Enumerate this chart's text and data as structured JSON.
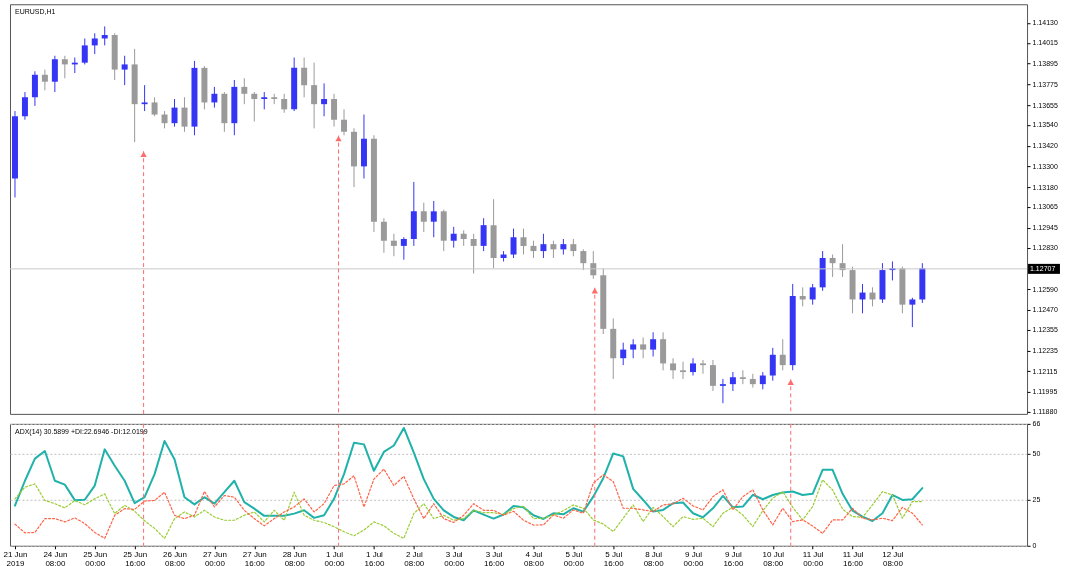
{
  "chart_data": [
    {
      "type": "candlestick",
      "title": "EURUSD,H1",
      "categories": [
        null,
        null,
        null,
        null,
        null,
        null,
        null,
        null,
        null,
        null,
        null,
        null,
        null,
        null,
        null,
        null,
        null,
        null,
        null,
        null,
        null,
        null,
        null,
        null,
        null,
        null,
        null,
        null,
        null,
        null,
        null,
        null,
        null,
        null,
        null,
        null,
        null,
        null,
        null,
        null,
        null,
        null,
        null,
        null,
        null,
        null,
        null,
        null,
        null,
        null,
        null,
        null,
        null,
        null,
        null,
        null,
        null,
        null,
        null,
        null,
        null,
        null,
        null,
        null,
        null,
        null,
        null,
        null,
        null,
        null,
        null,
        null,
        null,
        null,
        null,
        null,
        null,
        null,
        null,
        null,
        null,
        null,
        null,
        null,
        null,
        null,
        null,
        null,
        null,
        null,
        null,
        null,
        null,
        null,
        null,
        null,
        null,
        null,
        null,
        null,
        null,
        null
      ],
      "ohlc": [
        [
          1.1323,
          1.1362,
          1.1312,
          1.1359
        ],
        [
          1.1359,
          1.1373,
          1.1357,
          1.137
        ],
        [
          1.137,
          1.1385,
          1.1365,
          1.1383
        ],
        [
          1.1383,
          1.1386,
          1.1374,
          1.1379
        ],
        [
          1.1379,
          1.1394,
          1.1373,
          1.1392
        ],
        [
          1.1392,
          1.1394,
          1.1381,
          1.1389
        ],
        [
          1.1389,
          1.1393,
          1.1384,
          1.139
        ],
        [
          1.139,
          1.1404,
          1.1389,
          1.14
        ],
        [
          1.14,
          1.1407,
          1.1395,
          1.1404
        ],
        [
          1.1404,
          1.1411,
          1.14,
          1.1406
        ],
        [
          1.1406,
          1.1407,
          1.138,
          1.1386
        ],
        [
          1.1386,
          1.1394,
          1.1377,
          1.1389
        ],
        [
          1.1389,
          1.1398,
          1.1344,
          1.1366
        ],
        [
          1.1366,
          1.1377,
          1.1362,
          1.1367
        ],
        [
          1.1367,
          1.137,
          1.1359,
          1.136
        ],
        [
          1.136,
          1.1362,
          1.1352,
          1.1355
        ],
        [
          1.1355,
          1.1369,
          1.1353,
          1.1364
        ],
        [
          1.1364,
          1.137,
          1.135,
          1.1353
        ],
        [
          1.1353,
          1.1391,
          1.1348,
          1.1387
        ],
        [
          1.1387,
          1.1388,
          1.1363,
          1.1367
        ],
        [
          1.1367,
          1.1376,
          1.1364,
          1.1372
        ],
        [
          1.1372,
          1.1373,
          1.135,
          1.1355
        ],
        [
          1.1355,
          1.138,
          1.1348,
          1.1376
        ],
        [
          1.1376,
          1.1381,
          1.1366,
          1.1372
        ],
        [
          1.1372,
          1.1373,
          1.1356,
          1.1369
        ],
        [
          1.1369,
          1.1373,
          1.1363,
          1.137
        ],
        [
          1.137,
          1.1372,
          1.1366,
          1.1369
        ],
        [
          1.1369,
          1.1372,
          1.1361,
          1.1363
        ],
        [
          1.1363,
          1.1393,
          1.1362,
          1.1387
        ],
        [
          1.1387,
          1.1393,
          1.137,
          1.1377
        ],
        [
          1.1377,
          1.139,
          1.1352,
          1.1366
        ],
        [
          1.1366,
          1.1378,
          1.1359,
          1.1369
        ],
        [
          1.1369,
          1.1372,
          1.1353,
          1.1357
        ],
        [
          1.1357,
          1.1363,
          1.1348,
          1.135
        ],
        [
          1.135,
          1.1352,
          1.1318,
          1.133
        ],
        [
          1.133,
          1.136,
          1.1323,
          1.1346
        ],
        [
          1.1346,
          1.1348,
          1.1292,
          1.1298
        ],
        [
          1.1298,
          1.13,
          1.128,
          1.1287
        ],
        [
          1.1287,
          1.1291,
          1.1278,
          1.1284
        ],
        [
          1.1284,
          1.1289,
          1.1276,
          1.1288
        ],
        [
          1.1288,
          1.1321,
          1.1284,
          1.1304
        ],
        [
          1.1304,
          1.1309,
          1.1292,
          1.1298
        ],
        [
          1.1298,
          1.131,
          1.1289,
          1.1304
        ],
        [
          1.1304,
          1.1305,
          1.1281,
          1.1287
        ],
        [
          1.1287,
          1.1295,
          1.1283,
          1.1291
        ],
        [
          1.1291,
          1.1293,
          1.1284,
          1.1288
        ],
        [
          1.1288,
          1.1291,
          1.1268,
          1.1284
        ],
        [
          1.1284,
          1.13,
          1.1281,
          1.1296
        ],
        [
          1.1296,
          1.1311,
          1.1271,
          1.1277
        ],
        [
          1.1277,
          1.1281,
          1.1275,
          1.1279
        ],
        [
          1.1279,
          1.1294,
          1.1277,
          1.1289
        ],
        [
          1.1289,
          1.1294,
          1.1279,
          1.1284
        ],
        [
          1.1284,
          1.1287,
          1.1277,
          1.1281
        ],
        [
          1.1281,
          1.1291,
          1.1277,
          1.1285
        ],
        [
          1.1285,
          1.1287,
          1.1277,
          1.1282
        ],
        [
          1.1282,
          1.1288,
          1.1279,
          1.1285
        ],
        [
          1.1285,
          1.1288,
          1.1278,
          1.1281
        ],
        [
          1.1281,
          1.1282,
          1.127,
          1.1274
        ],
        [
          1.1274,
          1.1281,
          1.1265,
          1.1267
        ],
        [
          1.1267,
          1.1271,
          1.1233,
          1.1236
        ],
        [
          1.1236,
          1.1242,
          1.1207,
          1.1219
        ],
        [
          1.1219,
          1.1228,
          1.1215,
          1.1224
        ],
        [
          1.1224,
          1.123,
          1.1219,
          1.1227
        ],
        [
          1.1227,
          1.1231,
          1.1219,
          1.1224
        ],
        [
          1.1224,
          1.1234,
          1.122,
          1.123
        ],
        [
          1.123,
          1.1234,
          1.1212,
          1.1216
        ],
        [
          1.1216,
          1.1219,
          1.1207,
          1.1212
        ],
        [
          1.1212,
          1.1217,
          1.1207,
          1.1211
        ],
        [
          1.1211,
          1.1219,
          1.1209,
          1.1216
        ],
        [
          1.1216,
          1.1218,
          1.121,
          1.1215
        ],
        [
          1.1215,
          1.1218,
          1.12,
          1.1203
        ],
        [
          1.1203,
          1.1207,
          1.1193,
          1.1204
        ],
        [
          1.1204,
          1.1211,
          1.12,
          1.1208
        ],
        [
          1.1208,
          1.1212,
          1.1204,
          1.1207
        ],
        [
          1.1207,
          1.121,
          1.1202,
          1.1204
        ],
        [
          1.1204,
          1.1211,
          1.1201,
          1.1209
        ],
        [
          1.1209,
          1.1225,
          1.1206,
          1.1221
        ],
        [
          1.1221,
          1.123,
          1.1212,
          1.1215
        ],
        [
          1.1215,
          1.1262,
          1.1212,
          1.1255
        ],
        [
          1.1255,
          1.126,
          1.1249,
          1.1253
        ],
        [
          1.1253,
          1.1262,
          1.125,
          1.126
        ],
        [
          1.126,
          1.1281,
          1.1258,
          1.1277
        ],
        [
          1.1277,
          1.1279,
          1.1266,
          1.1274
        ],
        [
          1.1274,
          1.1285,
          1.1266,
          1.127
        ],
        [
          1.127,
          1.1272,
          1.1245,
          1.1253
        ],
        [
          1.1253,
          1.1262,
          1.1245,
          1.1257
        ],
        [
          1.1257,
          1.126,
          1.1249,
          1.1253
        ],
        [
          1.1253,
          1.1274,
          1.1251,
          1.127
        ],
        [
          1.127,
          1.1275,
          1.1264,
          1.1271
        ],
        [
          1.1271,
          1.1272,
          1.1245,
          1.125
        ],
        [
          1.125,
          1.1254,
          1.1237,
          1.1253
        ],
        [
          1.1253,
          1.1274,
          1.1251,
          1.1271
        ],
        null,
        null,
        null,
        null,
        null,
        null,
        null,
        null,
        null,
        null
      ],
      "colors": [
        "#3535f5",
        "#3535f5",
        "#3535f5",
        "#9a9a9a",
        "#3535f5",
        "#9a9a9a",
        "#3535f5",
        "#3535f5",
        "#3535f5",
        "#3535f5",
        "#9a9a9a",
        "#3535f5",
        "#9a9a9a",
        "#3535f5",
        "#9a9a9a",
        "#9a9a9a",
        "#3535f5",
        "#9a9a9a",
        "#3535f5",
        "#9a9a9a",
        "#3535f5",
        "#9a9a9a",
        "#3535f5",
        "#9a9a9a",
        "#9a9a9a",
        "#3535f5",
        "#9a9a9a",
        "#9a9a9a",
        "#3535f5",
        "#9a9a9a",
        "#9a9a9a",
        "#3535f5",
        "#9a9a9a",
        "#9a9a9a",
        "#9a9a9a",
        "#3535f5",
        "#9a9a9a",
        "#9a9a9a",
        "#9a9a9a",
        "#3535f5",
        "#3535f5",
        "#9a9a9a",
        "#3535f5",
        "#9a9a9a",
        "#3535f5",
        "#9a9a9a",
        "#9a9a9a",
        "#3535f5",
        "#9a9a9a",
        "#3535f5",
        "#3535f5",
        "#9a9a9a",
        "#9a9a9a",
        "#3535f5",
        "#9a9a9a",
        "#3535f5",
        "#9a9a9a",
        "#9a9a9a",
        "#9a9a9a",
        "#9a9a9a",
        "#9a9a9a",
        "#3535f5",
        "#3535f5",
        "#9a9a9a",
        "#3535f5",
        "#9a9a9a",
        "#9a9a9a",
        "#9a9a9a",
        "#3535f5",
        "#9a9a9a",
        "#9a9a9a",
        "#3535f5",
        "#3535f5",
        "#9a9a9a",
        "#9a9a9a",
        "#3535f5",
        "#3535f5",
        "#9a9a9a",
        "#3535f5",
        "#9a9a9a",
        "#3535f5",
        "#3535f5",
        "#9a9a9a",
        "#9a9a9a",
        "#9a9a9a",
        "#3535f5",
        "#9a9a9a",
        "#3535f5",
        "#3535f5",
        "#9a9a9a",
        "#3535f5",
        "#3535f5",
        null,
        null,
        null,
        null,
        null,
        null,
        null,
        null,
        null,
        null
      ],
      "ylim": [
        1.11868,
        1.14238
      ],
      "yticks": [
        {
          "value": 1.1413,
          "label": "1.14130"
        },
        1.14015,
        1.13895,
        1.13775,
        1.13655,
        {
          "value": 1.1354,
          "label": "1.13540"
        },
        {
          "value": 1.1342,
          "label": "1.13420"
        },
        {
          "value": 1.133,
          "label": "1.13300"
        },
        {
          "value": 1.1318,
          "label": "1.13180"
        },
        1.13065,
        1.12945,
        {
          "value": 1.1283,
          "label": "1.12830"
        },
        {
          "value": 1.1259,
          "label": "1.12590"
        },
        {
          "value": 1.1247,
          "label": "1.12470"
        },
        1.12355,
        1.12235,
        1.12115,
        1.11995,
        {
          "value": 1.1188,
          "label": "1.11880"
        }
      ],
      "ref_lines": [
        {
          "axis": "y",
          "value": 1.12707,
          "label": "1.12707",
          "color": "#c8c8c8"
        }
      ],
      "tick_labels": "y"
    },
    {
      "type": "line",
      "title": "ADX(14) 30.5899 +DI:22.6946 -DI:12.0199",
      "categories": [
        "21 Jun 2019",
        null,
        null,
        null,
        "24 Jun 08:00",
        null,
        null,
        null,
        "25 Jun 00:00",
        null,
        null,
        null,
        "25 Jun 16:00",
        null,
        null,
        null,
        "26 Jun 08:00",
        null,
        null,
        null,
        "27 Jun 00:00",
        null,
        null,
        null,
        "27 Jun 16:00",
        null,
        null,
        null,
        "28 Jun 08:00",
        null,
        null,
        null,
        "1 Jul 00:00",
        null,
        null,
        null,
        "1 Jul 16:00",
        null,
        null,
        null,
        "2 Jul 08:00",
        null,
        null,
        null,
        "3 Jul 00:00",
        null,
        null,
        null,
        "3 Jul 16:00",
        null,
        null,
        null,
        "4 Jul 08:00",
        null,
        null,
        null,
        "5 Jul 00:00",
        null,
        null,
        null,
        "5 Jul 16:00",
        null,
        null,
        null,
        "8 Jul 08:00",
        null,
        null,
        null,
        "9 Jul 00:00",
        null,
        null,
        null,
        "9 Jul 16:00",
        null,
        null,
        null,
        "10 Jul 08:00",
        null,
        null,
        null,
        "11 Jul 00:00",
        null,
        null,
        null,
        "11 Jul 16:00",
        null,
        null,
        null,
        "12 Jul 08:00",
        null,
        null,
        null,
        null,
        null,
        null,
        null,
        null,
        null,
        null,
        null,
        null,
        null
      ],
      "series": [
        {
          "color": "#20b2aa",
          "line_style": "solid",
          "values": [
            21.7,
            35.2,
            47.2,
            51.3,
            35.2,
            33.1,
            24.7,
            24.9,
            32.6,
            52.2,
            43.3,
            35.2,
            23.1,
            26.3,
            38.8,
            56.7,
            46.9,
            26.3,
            22.4,
            26.3,
            22.8,
            29.0,
            35.2,
            23.6,
            20.1,
            16.2,
            16.2,
            16.2,
            17.4,
            19.2,
            15.1,
            16.5,
            25.4,
            38.8,
            55.8,
            54.9,
            40.6,
            50.8,
            54.3,
            63.8,
            50.4,
            36.1,
            25.4,
            19.2,
            15.6,
            13.8,
            19.2,
            16.9,
            14.7,
            16.9,
            21.5,
            20.8,
            16.5,
            14.5,
            17.6,
            17.0,
            20.3,
            18.5,
            26.6,
            36.6,
            50.0,
            48.4,
            30.8,
            24.8,
            18.5,
            19.4,
            23.0,
            23.4,
            17.6,
            15.4,
            20.3,
            27.0,
            20.8,
            21.2,
            27.6,
            25.2,
            27.5,
            28.8,
            29.4,
            27.5,
            28.1,
            41.1,
            41.1,
            28.1,
            19.0,
            15.8,
            13.4,
            17.6,
            27.5,
            24.8,
            25.2,
            31.2,
            null,
            null,
            null,
            null,
            null,
            null,
            null,
            null,
            null,
            null
          ]
        },
        {
          "color": "#9acd32",
          "line_style": "dotted",
          "values": [
            25.4,
            31.7,
            33.5,
            24.5,
            22.8,
            20.5,
            24.5,
            22.2,
            25.4,
            28.1,
            17.4,
            21.9,
            18.7,
            13.5,
            9.4,
            4.0,
            14.7,
            18.3,
            15.6,
            19.2,
            15.6,
            13.8,
            13.8,
            16.5,
            18.3,
            12.9,
            19.2,
            13.8,
            29.0,
            16.5,
            13.8,
            12.6,
            10.3,
            7.6,
            5.4,
            8.5,
            12.9,
            10.8,
            6.7,
            4.0,
            17.4,
            22.8,
            14.7,
            16.5,
            13.8,
            14.7,
            19.2,
            17.9,
            17.9,
            16.9,
            20.1,
            21.5,
            14.7,
            14.9,
            16.7,
            19.0,
            22.1,
            20.3,
            14.0,
            11.8,
            7.7,
            14.9,
            22.1,
            13.1,
            20.8,
            15.8,
            10.4,
            15.8,
            14.3,
            14.9,
            10.4,
            17.6,
            20.8,
            16.7,
            10.4,
            19.0,
            25.7,
            29.3,
            20.8,
            14.0,
            21.2,
            35.7,
            30.2,
            19.8,
            15.8,
            15.4,
            22.1,
            29.3,
            27.5,
            14.9,
            23.9,
            23.9,
            null,
            null,
            null,
            null,
            null,
            null,
            null,
            null,
            null,
            null
          ]
        },
        {
          "color": "#ff6347",
          "line_style": "dotted",
          "values": [
            11.7,
            7.0,
            7.2,
            14.7,
            14.7,
            12.9,
            15.1,
            12.0,
            7.2,
            4.0,
            16.5,
            20.1,
            19.7,
            24.2,
            24.5,
            29.0,
            16.5,
            14.7,
            16.5,
            29.4,
            21.0,
            27.2,
            26.3,
            19.2,
            14.7,
            10.8,
            14.7,
            18.3,
            21.0,
            25.4,
            18.3,
            22.8,
            32.6,
            33.5,
            37.9,
            21.0,
            36.1,
            41.5,
            32.6,
            37.6,
            25.4,
            14.7,
            22.8,
            14.7,
            12.6,
            16.5,
            22.8,
            19.2,
            19.2,
            16.5,
            18.7,
            13.8,
            11.2,
            11.3,
            16.7,
            14.9,
            19.4,
            17.6,
            33.9,
            38.4,
            34.8,
            20.3,
            20.3,
            19.4,
            18.5,
            22.1,
            22.7,
            25.7,
            21.6,
            19.4,
            26.6,
            30.3,
            19.4,
            26.6,
            30.3,
            19.4,
            11.3,
            20.3,
            13.1,
            14.0,
            10.7,
            6.7,
            14.0,
            14.0,
            20.3,
            14.9,
            14.0,
            14.9,
            13.6,
            20.8,
            17.6,
            11.3,
            null,
            null,
            null,
            null,
            null,
            null,
            null,
            null,
            null,
            null
          ]
        }
      ],
      "ylim": [
        0,
        66
      ],
      "yticks": [
        0,
        25,
        50,
        66
      ],
      "grid": "y"
    }
  ]
}
